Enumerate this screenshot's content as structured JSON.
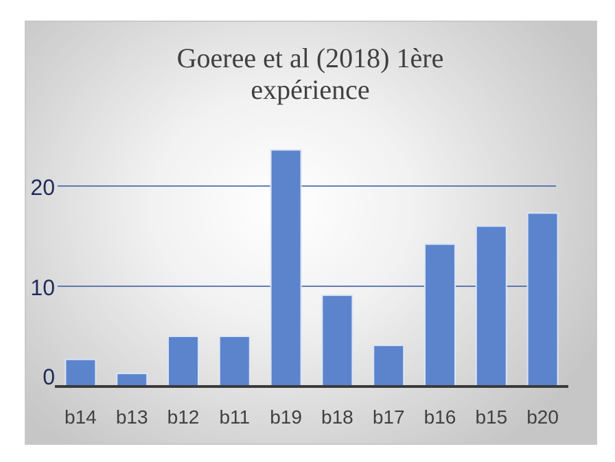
{
  "chart_data": {
    "type": "bar",
    "title_lines": [
      "Goeree et al (2018) 1ère",
      "expérience"
    ],
    "categories": [
      "b14",
      "b13",
      "b12",
      "b11",
      "b19",
      "b18",
      "b17",
      "b16",
      "b15",
      "b20"
    ],
    "values": [
      2.7,
      1.3,
      5.0,
      5.0,
      23.6,
      9.1,
      4.1,
      14.2,
      16.0,
      17.3
    ],
    "ylim": [
      0,
      25
    ],
    "yticks": [
      0,
      10,
      20
    ],
    "xlabel": "",
    "ylabel": "",
    "grid": true,
    "legend": "none",
    "colors": {
      "bar": "#5b84cd",
      "bar_border": "#dbe4f5",
      "gridline": "#2f55a4",
      "axis": "#3a3a3a",
      "tick_label": "#404040",
      "ytick_label": "#1f2a5a"
    }
  }
}
